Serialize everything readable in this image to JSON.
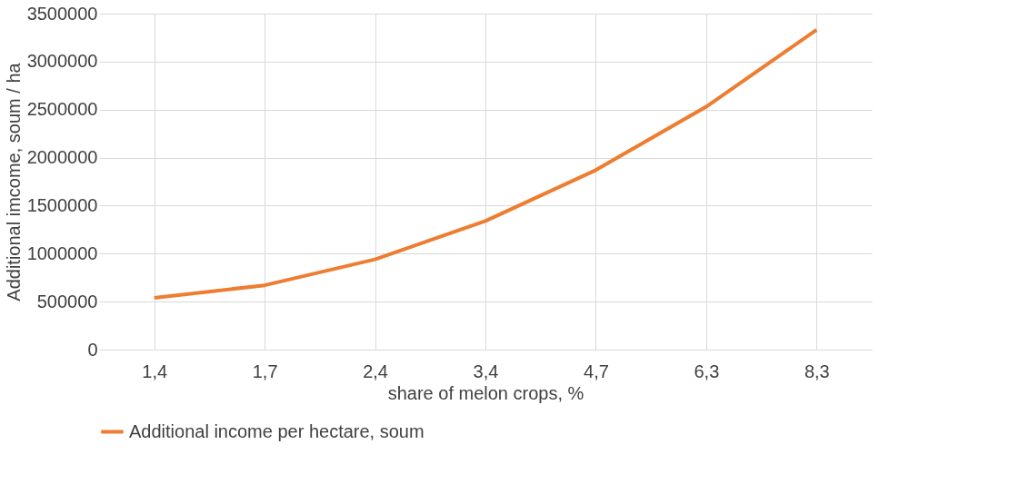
{
  "chart_data": {
    "type": "line",
    "xlabel": "share of melon crops, %",
    "ylabel": "Additional imcome, soum / ha",
    "categories": [
      "1,4",
      "1,7",
      "2,4",
      "3,4",
      "4,7",
      "6,3",
      "8,3"
    ],
    "series": [
      {
        "name": "Additional income per hectare, soum",
        "color": "#ed7d31",
        "values": [
          540000,
          670000,
          940000,
          1340000,
          1870000,
          2530000,
          3330000
        ]
      }
    ],
    "ylim": [
      0,
      3500000
    ],
    "yticks": [
      0,
      500000,
      1000000,
      1500000,
      2000000,
      2500000,
      3000000,
      3500000
    ],
    "grid": true,
    "legend": "bottom",
    "marker": "none",
    "line_style": "solid"
  }
}
